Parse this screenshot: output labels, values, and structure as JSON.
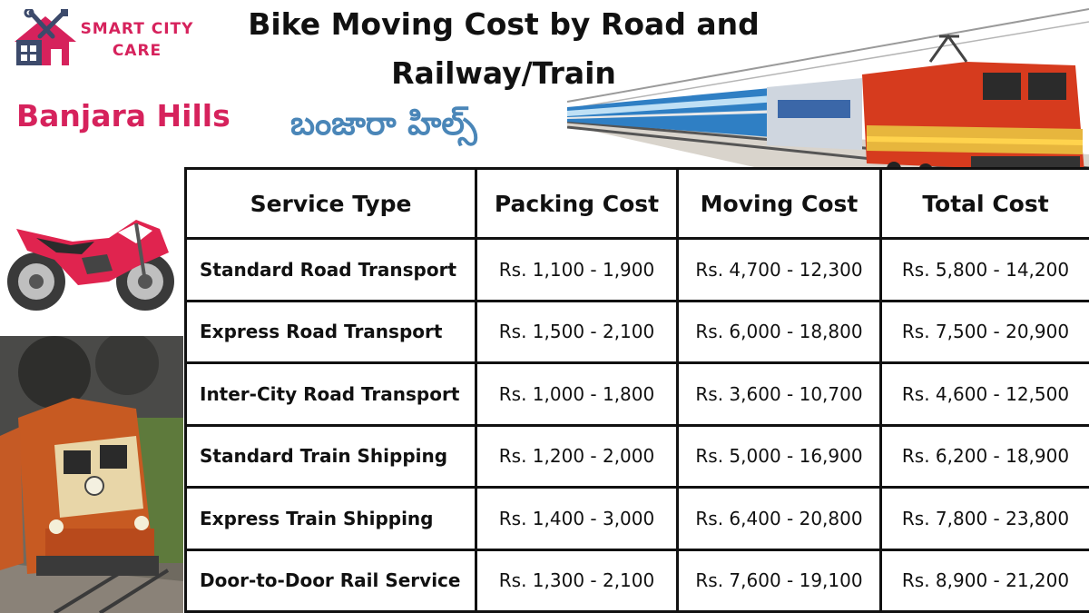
{
  "logo": {
    "line1": "SMART CITY",
    "line2": "CARE"
  },
  "title": "Bike Moving Cost by Road and Railway/Train",
  "locality_en": "Banjara Hills",
  "locality_te": "బంజారా హిల్స్",
  "colors": {
    "brand_pink": "#d6225c",
    "telugu_blue": "#4a86b8"
  },
  "table": {
    "headers": [
      "Service Type",
      "Packing Cost",
      "Moving Cost",
      "Total Cost"
    ],
    "rows": [
      [
        "Standard Road Transport",
        "Rs. 1,100 - 1,900",
        "Rs. 4,700 - 12,300",
        "Rs. 5,800 - 14,200"
      ],
      [
        "Express Road Transport",
        "Rs. 1,500 - 2,100",
        "Rs. 6,000 - 18,800",
        "Rs. 7,500 - 20,900"
      ],
      [
        "Inter-City Road Transport",
        "Rs. 1,000 - 1,800",
        "Rs. 3,600 - 10,700",
        "Rs. 4,600 - 12,500"
      ],
      [
        "Standard Train Shipping",
        "Rs. 1,200 - 2,000",
        "Rs. 5,000 - 16,900",
        "Rs. 6,200 - 18,900"
      ],
      [
        "Express Train Shipping",
        "Rs. 1,400 - 3,000",
        "Rs. 6,400 - 20,800",
        "Rs. 7,800 - 23,800"
      ],
      [
        "Door-to-Door Rail Service",
        "Rs. 1,300 - 2,100",
        "Rs. 7,600 - 19,100",
        "Rs. 8,900 - 21,200"
      ]
    ]
  },
  "icons": [
    "house-tools-logo-icon",
    "electric-train-icon",
    "sport-bike-icon",
    "diesel-locomotive-icon"
  ]
}
